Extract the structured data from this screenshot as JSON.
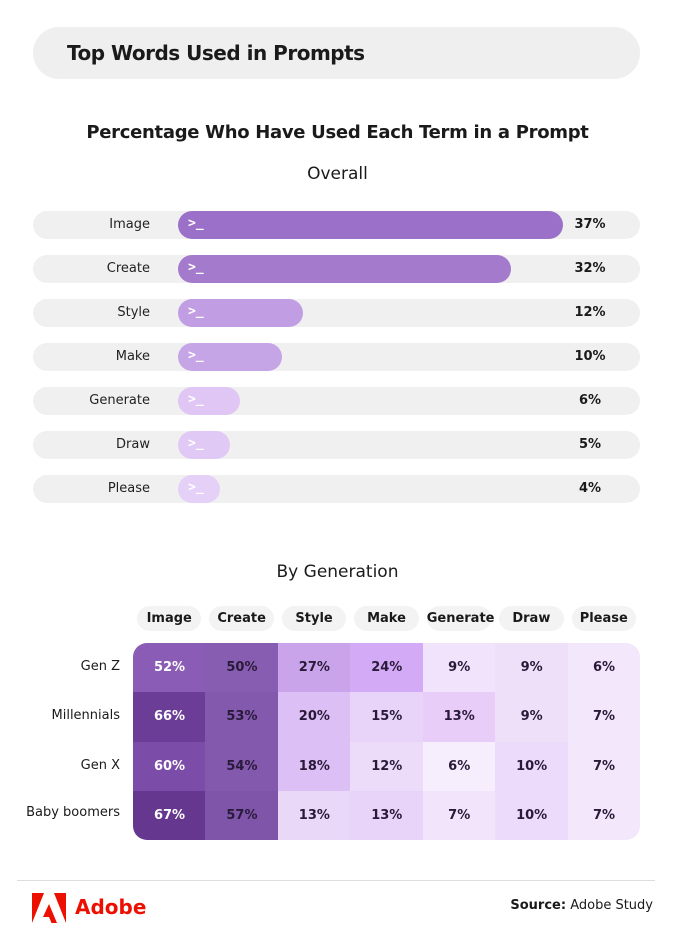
{
  "header": {
    "title": "Top Words Used in Prompts"
  },
  "chart_data": [
    {
      "type": "bar",
      "title": "Percentage Who Have Used Each Term in a Prompt",
      "subtitle": "Overall",
      "categories": [
        "Image",
        "Create",
        "Style",
        "Make",
        "Generate",
        "Draw",
        "Please"
      ],
      "values": [
        37,
        32,
        12,
        10,
        6,
        5,
        4
      ],
      "value_labels": [
        "37%",
        "32%",
        "12%",
        "10%",
        "6%",
        "5%",
        "4%"
      ],
      "colors": [
        "#9b70c8",
        "#a47bcc",
        "#c19ee3",
        "#c6a5e6",
        "#dfc6f4",
        "#e1c9f5",
        "#e5d0f7"
      ],
      "xlim": [
        0,
        40
      ],
      "orientation": "horizontal",
      "bar_icon": "terminal-prompt-icon"
    },
    {
      "type": "heatmap",
      "subtitle": "By Generation",
      "columns": [
        "Image",
        "Create",
        "Style",
        "Make",
        "Generate",
        "Draw",
        "Please"
      ],
      "rows": [
        "Gen Z",
        "Millennials",
        "Gen X",
        "Baby boomers"
      ],
      "values": [
        [
          52,
          50,
          27,
          24,
          9,
          9,
          6
        ],
        [
          66,
          53,
          20,
          15,
          13,
          9,
          7
        ],
        [
          60,
          54,
          18,
          12,
          6,
          10,
          7
        ],
        [
          67,
          57,
          13,
          13,
          7,
          10,
          7
        ]
      ],
      "labels": [
        [
          "52%",
          "50%",
          "27%",
          "24%",
          "9%",
          "9%",
          "6%"
        ],
        [
          "66%",
          "53%",
          "20%",
          "15%",
          "13%",
          "9%",
          "7%"
        ],
        [
          "60%",
          "54%",
          "18%",
          "12%",
          "6%",
          "10%",
          "7%"
        ],
        [
          "67%",
          "57%",
          "13%",
          "13%",
          "7%",
          "10%",
          "7%"
        ]
      ],
      "colors": [
        [
          "#8a5cb5",
          "#875db1",
          "#c9a4ea",
          "#d3aaf5",
          "#f1e3fb",
          "#efe0fa",
          "#f3e7fc"
        ],
        [
          "#6b3d97",
          "#8359ad",
          "#dcbff4",
          "#e8d4f8",
          "#e7cdf7",
          "#efe0fa",
          "#f3e7fc"
        ],
        [
          "#7b4ca8",
          "#8359ad",
          "#dcbff4",
          "#ecdcf9",
          "#f6edfd",
          "#ecdbfa",
          "#f3e7fc"
        ],
        [
          "#65378f",
          "#7f55aa",
          "#ead8f9",
          "#e8d4f8",
          "#f1e4fb",
          "#ecdbfa",
          "#f3e7fc"
        ]
      ]
    }
  ],
  "footer": {
    "brand": "Adobe",
    "source_label": "Source:",
    "source_value": "Adobe Study",
    "brand_color": "#eb1000"
  }
}
